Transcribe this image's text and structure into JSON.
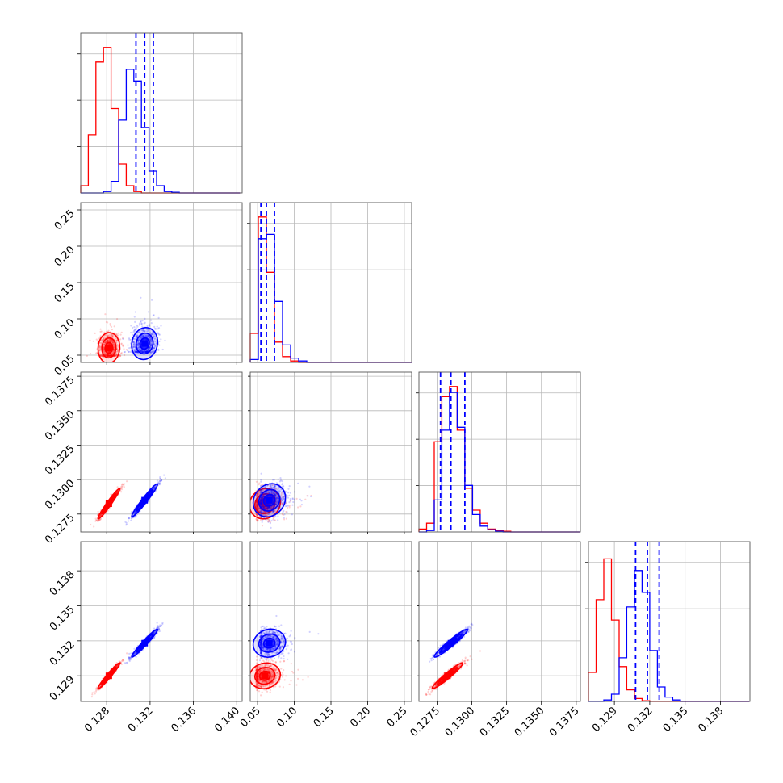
{
  "chart_data": {
    "type": "corner",
    "grid": true,
    "colors": {
      "red": "#ff0000",
      "blue": "#0000ff"
    },
    "series": [
      {
        "color": "#ff0000",
        "mean": [
          0.1282,
          0.06,
          0.12825,
          0.129
        ]
      },
      {
        "color": "#0000ff",
        "mean": [
          0.1315,
          0.066,
          0.1285,
          0.1318
        ]
      }
    ],
    "quantile_lines": {
      "color": "#0000ff",
      "style": "dashed",
      "values": [
        [
          0.1307,
          0.1315,
          0.1323
        ],
        [
          0.0545,
          0.062,
          0.073
        ],
        [
          0.12775,
          0.1285,
          0.1295
        ],
        [
          0.1308,
          0.1318,
          0.1328
        ]
      ]
    },
    "params": [
      {
        "range": [
          0.1256,
          0.1405
        ],
        "ticks": [
          0.128,
          0.132,
          0.136,
          0.14
        ],
        "tick_labels": [
          "0.128",
          "0.132",
          "0.136",
          "0.140"
        ]
      },
      {
        "range": [
          0.04,
          0.26
        ],
        "ticks": [
          0.05,
          0.1,
          0.15,
          0.2,
          0.25
        ],
        "tick_labels": [
          "0.05",
          "0.10",
          "0.15",
          "0.20",
          "0.25"
        ]
      },
      {
        "range": [
          0.1262,
          0.1378
        ],
        "ticks": [
          0.1275,
          0.13,
          0.1325,
          0.135,
          0.1375
        ],
        "tick_labels": [
          "0.1275",
          "0.1300",
          "0.1325",
          "0.1350",
          "0.1375"
        ]
      },
      {
        "range": [
          0.1268,
          0.1405
        ],
        "ticks": [
          0.129,
          0.132,
          0.135,
          0.138
        ],
        "tick_labels": [
          "0.129",
          "0.132",
          "0.135",
          "0.138"
        ]
      }
    ],
    "histograms": [
      {
        "bins": [
          0.1256,
          0.1263,
          0.127,
          0.1277,
          0.1284,
          0.1291,
          0.1298,
          0.1305,
          0.1312,
          0.1319,
          0.1326,
          0.1333,
          0.134,
          0.1347,
          0.1354,
          0.1361,
          0.1368,
          0.1375,
          0.1382,
          0.1389,
          0.1396,
          0.1403
        ],
        "red": [
          0.05,
          0.4,
          0.9,
          1.0,
          0.58,
          0.2,
          0.05,
          0.01,
          0,
          0,
          0,
          0,
          0,
          0,
          0,
          0,
          0,
          0,
          0,
          0,
          0
        ],
        "blue": [
          0,
          0,
          0,
          0.01,
          0.08,
          0.5,
          0.85,
          0.77,
          0.45,
          0.15,
          0.05,
          0.01,
          0.005,
          0,
          0,
          0,
          0,
          0,
          0,
          0,
          0
        ]
      },
      {
        "bins": [
          0.04,
          0.051,
          0.062,
          0.073,
          0.084,
          0.095,
          0.106,
          0.117,
          0.128,
          0.139,
          0.15,
          0.161,
          0.172,
          0.183,
          0.194,
          0.205,
          0.216,
          0.227,
          0.238,
          0.249,
          0.26
        ],
        "red": [
          0.2,
          1.0,
          0.62,
          0.14,
          0.04,
          0.01,
          0,
          0,
          0,
          0,
          0,
          0,
          0,
          0,
          0,
          0,
          0,
          0,
          0,
          0
        ],
        "blue": [
          0.02,
          0.85,
          0.88,
          0.42,
          0.12,
          0.03,
          0.01,
          0,
          0,
          0,
          0,
          0,
          0,
          0,
          0,
          0,
          0,
          0,
          0,
          0
        ]
      },
      {
        "bins": [
          0.1262,
          0.12675,
          0.1273,
          0.12785,
          0.1284,
          0.12895,
          0.1295,
          0.13005,
          0.1306,
          0.13115,
          0.1317,
          0.13225,
          0.1328,
          0.13335,
          0.1339,
          0.13445,
          0.135,
          0.13555,
          0.1361,
          0.13665,
          0.1372,
          0.13775
        ],
        "red": [
          0.02,
          0.06,
          0.62,
          0.93,
          1.0,
          0.7,
          0.3,
          0.15,
          0.06,
          0.02,
          0.01,
          0.005,
          0,
          0,
          0,
          0,
          0,
          0,
          0,
          0,
          0
        ],
        "blue": [
          0,
          0.01,
          0.22,
          0.7,
          0.96,
          0.72,
          0.32,
          0.12,
          0.04,
          0.015,
          0.005,
          0,
          0,
          0,
          0,
          0,
          0,
          0,
          0,
          0,
          0
        ]
      },
      {
        "bins": [
          0.1268,
          0.12745,
          0.1281,
          0.12875,
          0.1294,
          0.13005,
          0.1307,
          0.13135,
          0.132,
          0.13265,
          0.1333,
          0.13395,
          0.1346,
          0.13525,
          0.1359,
          0.13655,
          0.1372,
          0.13785,
          0.1385,
          0.13915,
          0.1398,
          0.14045
        ],
        "red": [
          0.2,
          0.7,
          0.98,
          0.56,
          0.24,
          0.08,
          0.02,
          0.005,
          0,
          0,
          0,
          0,
          0,
          0,
          0,
          0,
          0,
          0,
          0,
          0,
          0
        ],
        "blue": [
          0,
          0,
          0.01,
          0.05,
          0.3,
          0.65,
          0.9,
          0.75,
          0.35,
          0.1,
          0.03,
          0.01,
          0,
          0,
          0,
          0,
          0,
          0,
          0,
          0,
          0
        ]
      }
    ]
  }
}
